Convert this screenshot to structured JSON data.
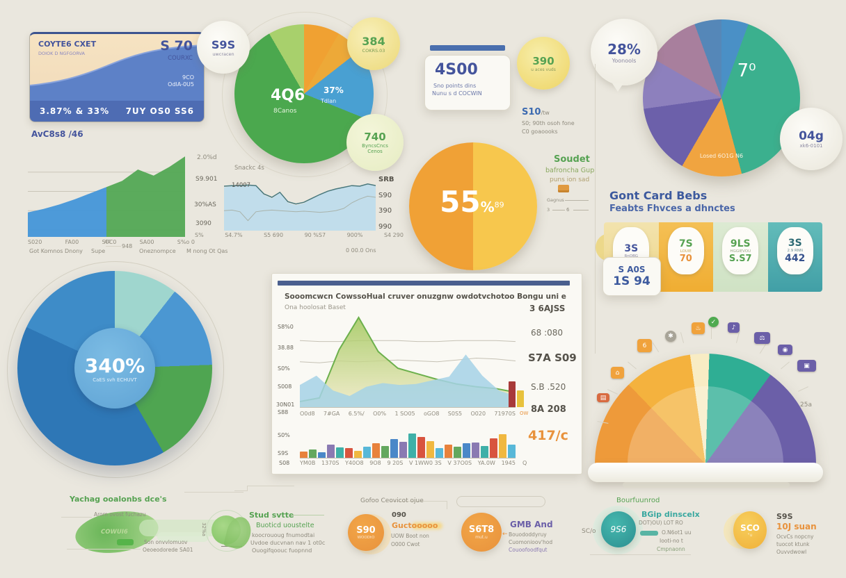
{
  "credit_card": {
    "name_line1": "COYTE6 CXET",
    "name_line2": "DOIOK D NGFGORVA",
    "amount": "S 70",
    "amount_sub": "COURXC",
    "wave_label1": "9CO",
    "wave_label2": "OdlA-0U5",
    "bottom_left": "3.87% & 33%",
    "bottom_right": "7UY OS0 SS6"
  },
  "left_section": {
    "caption_title": "AvC8s8 /46",
    "footnote1": "Got Komnos Dnony",
    "footnote_small": "40",
    "footnote2": "Supe",
    "footnote3": "948",
    "footnote4": "Oneznompce",
    "footnote5": "M nong Ot Qas"
  },
  "top_middle_pie": {
    "center_value": "4Q6",
    "center_sub": "8Canos",
    "slice_value": "37%",
    "slice_sub": "Tdlan"
  },
  "bubbles": {
    "b1": {
      "value": "S9S",
      "sub": "uwcracen"
    },
    "b2": {
      "value": "384",
      "sub": "COKRS.03"
    },
    "b3": {
      "value": "740",
      "sub1": "ByncsCncs",
      "sub2": "Cenos"
    },
    "b4": {
      "value": "390",
      "sub": "u aces vuds"
    },
    "b5": {
      "value": "28%",
      "sub": "Yoonools"
    },
    "b6": {
      "value": "04g",
      "sub": "xk6-0101"
    }
  },
  "card_500": {
    "value": "4S00",
    "line1": "Sno points dins",
    "line2": "Nunu s d COCWIN"
  },
  "note_10": {
    "value": "S10",
    "unit": "/tw",
    "line1": "S0; 90th osoh fone",
    "line2": "C0 goaoooks"
  },
  "top_right_pie": {
    "label": "7⁰",
    "slice_label": "Losed 6O1G N6"
  },
  "right_heading": {
    "line1": "Gont Card Bebs",
    "line2": "Feabts Fhvces a dhnctes"
  },
  "tiles": [
    {
      "value": "3S",
      "sub": "RnOBG",
      "extra": ""
    },
    {
      "value": "7S",
      "sub": "LOUIE",
      "extra": "70"
    },
    {
      "value": "9LS",
      "sub": "HGGIEVOU",
      "extra": "S.S7"
    },
    {
      "value": "3S",
      "sub": "2.9 RNN",
      "extra": "442"
    }
  ],
  "stat_card": {
    "line1": "S A0S",
    "line2": "1S 94"
  },
  "mid_blue_chart": {
    "left_labels": [
      "2.0%d",
      "S9.901",
      "30%AS",
      "3090"
    ],
    "note": "Snackc 4s",
    "inner_label": "14007",
    "right_labels": [
      "SRB",
      "S90",
      "390",
      "990"
    ],
    "x_labels": [
      "S%",
      "S4.7%",
      "S5 690",
      "90 %S7",
      "900%",
      "S4 290"
    ],
    "footnote": "0 00.0 Ons"
  },
  "orange_pie": {
    "value": "55",
    "pct": "%",
    "sup": "89"
  },
  "soudet": {
    "title": "Soudet",
    "line1": "bafroncha Gup",
    "line2": "puns ion sad",
    "legend1": "Gagnus",
    "legend2": "3",
    "legend3": "6"
  },
  "big_left_pie": {
    "center_value": "340%",
    "center_sub": "CaES svh ECHUVT"
  },
  "center_card": {
    "title": "Sooomcwcn CowssoHual cruver onuzgnw owdotvchotoo Bongu uni e",
    "subtitle": "Ona hoolosat Baset",
    "y_labels": [
      "S8%0",
      "38.88",
      "S0%",
      "S008",
      "30N01",
      "S88"
    ],
    "bar_y_labels": [
      "S0%",
      "S9S"
    ],
    "corner_label": "S08",
    "area_x_extra": "OW",
    "bar_x_extra": "Q",
    "right_stats": [
      "3 6AJSS",
      "68 :080",
      "S7A S09",
      "S.B .520",
      "8A 208",
      "417/c"
    ]
  },
  "gauge": {
    "icons_left": [
      "▤",
      "⌂",
      "6",
      "✱",
      "♨"
    ],
    "icon_top": "✓",
    "icons_right": [
      "♪",
      "⚖",
      "◉",
      "▣"
    ],
    "note": "25a"
  },
  "bottom": {
    "g1": {
      "title": "Yachag ooalonbs dce's",
      "line1": "Arom ovost fuchazu",
      "label": "COWUI6",
      "line2": "Son onvvlomuov",
      "line3": "Oeoeodorede SA01",
      "side": "32%a"
    },
    "g2": {
      "title": "Stud svtte",
      "subtitle": "Buoticd uoustelte",
      "line1": "koocrououg fnumodtai",
      "line2": "Uvdoe ducvnan nav 1 ot0c",
      "line3": "Ouogifqoouc fuopnnd"
    },
    "g3": {
      "title": "Gofoo Ceovicot ojue",
      "value": "S90",
      "value_sub": "WOODtO",
      "num": "090",
      "accent": "Guctooooo",
      "line1": "UOW Boot non",
      "line2": "O000 Cwot"
    },
    "g4": {
      "value": "S6T8",
      "value_sub": "mut.u",
      "title": "GMB And",
      "line1": "Bouododdyruy",
      "line2": "Cuomonioov'hod",
      "line3": "Couoofoodfqut"
    },
    "g5": {
      "title": "Bourfuunrod",
      "value": "9S6",
      "left": "SC/o",
      "accent": "BGip dinscelx",
      "line1": "DOT)OU) LOT RO",
      "line2": "O.N6ot1 uu",
      "line3": "Iooti-no t",
      "line4": "Cmpnaonn"
    },
    "g6": {
      "value": "SCO",
      "value_sub": "\"u",
      "num": "S9S",
      "accent": "10J suan",
      "line1": "OcvCs nopcny",
      "line2": "tuocot ktunk",
      "line3": "Ouvvdwowl"
    }
  },
  "chart_data": [
    {
      "id": "left_area",
      "type": "area",
      "categories": [
        "S020",
        "FA00",
        "S0C0",
        "SA00",
        "S%o 0"
      ],
      "grid": [
        8,
        30,
        52,
        74
      ],
      "series": [
        {
          "type": "area",
          "color": "#4596d8",
          "opacity": 0.95,
          "x0": 0,
          "x1": 0.5,
          "values": [
            28,
            32,
            37,
            43,
            50,
            57
          ]
        },
        {
          "type": "area",
          "color": "#53a854",
          "opacity": 0.95,
          "x0": 0.5,
          "x1": 1,
          "values": [
            57,
            64,
            77,
            70,
            80,
            92
          ]
        }
      ]
    },
    {
      "id": "top_middle_pie",
      "type": "pie",
      "start": 0,
      "slices": [
        {
          "color": "#f0a132",
          "deg": 30
        },
        {
          "color": "#eda938",
          "deg": 22
        },
        {
          "color": "#49a0d2",
          "deg": 60
        },
        {
          "color": "#4ba84e",
          "deg": 218
        },
        {
          "color": "#a8d06c",
          "deg": 30
        }
      ]
    },
    {
      "id": "top_right_pie",
      "type": "pie",
      "start": 0,
      "slices": [
        {
          "color": "#4a90c6",
          "deg": 20
        },
        {
          "color": "#3bb08e",
          "deg": 145
        },
        {
          "color": "#f0a440",
          "deg": 45
        },
        {
          "color": "#6c60aa",
          "deg": 52
        },
        {
          "color": "#8d80bd",
          "deg": 38
        },
        {
          "color": "#a87f9d",
          "deg": 40
        },
        {
          "color": "#5587b8",
          "deg": 20
        }
      ]
    },
    {
      "id": "mid_blue_area",
      "type": "area",
      "series": [
        {
          "type": "area",
          "color": "#bcdcec",
          "opacity": 0.9,
          "values": [
            78,
            80,
            80,
            81,
            80,
            64,
            58,
            68,
            50,
            46,
            49,
            57,
            64,
            70,
            74,
            77,
            80,
            79,
            83,
            80
          ]
        },
        {
          "type": "line",
          "color": "#47777c",
          "width": 1.5,
          "values": [
            80,
            81,
            81,
            82,
            81,
            66,
            60,
            69,
            52,
            48,
            51,
            58,
            65,
            71,
            75,
            78,
            81,
            80,
            84,
            81
          ]
        },
        {
          "type": "line",
          "color": "#a8b2aa",
          "width": 1,
          "values": [
            36,
            37,
            34,
            18,
            34,
            36,
            37,
            36,
            35,
            34,
            35,
            34,
            33,
            34,
            36,
            40,
            50,
            57,
            62,
            60
          ]
        }
      ]
    },
    {
      "id": "orange_pie_55",
      "type": "pie",
      "start": 0,
      "slices": [
        {
          "color": "#f7c74d",
          "deg": 180
        },
        {
          "color": "#f0a136",
          "deg": 180
        }
      ]
    },
    {
      "id": "center_combo_area",
      "type": "area",
      "x_labels": [
        "O0d8",
        "7#GA",
        "6.5%/",
        "O0%",
        "1 SO05",
        "oGO8",
        "S0S5",
        "O020",
        "71970S"
      ],
      "series": [
        {
          "type": "line",
          "color": "#c5c1b4",
          "width": 1,
          "values": [
            72,
            71,
            71,
            72,
            72,
            72,
            71,
            71,
            72,
            72,
            72,
            71
          ]
        },
        {
          "type": "line",
          "color": "#c5c1b4",
          "width": 1,
          "values": [
            49,
            48,
            50,
            49,
            50,
            51,
            50,
            49,
            51,
            53,
            52,
            50
          ]
        },
        {
          "type": "area",
          "color": "#b6d45e",
          "opacity": 0.8,
          "stroke": "#6cb04c",
          "strokew": 2,
          "gradient": [
            "#9cc452",
            "#efe9c2"
          ],
          "values": [
            6,
            10,
            62,
            97,
            60,
            42,
            36,
            30,
            25,
            22,
            20,
            16
          ]
        },
        {
          "type": "area",
          "color": "#a5d2e6",
          "opacity": 0.85,
          "values": [
            24,
            34,
            18,
            12,
            22,
            26,
            24,
            25,
            29,
            33,
            57,
            34,
            18,
            12
          ]
        }
      ],
      "edge_bars": {
        "values": [
          62,
          40
        ],
        "colors": [
          "#a83a3a",
          "#e8c23c"
        ]
      }
    },
    {
      "id": "center_bars",
      "type": "bar",
      "x_labels": [
        "YM0B",
        "1370S",
        "Y40O8",
        "9O8",
        "9 20S",
        "V 1WW0 3S",
        "V 37O0S",
        "YA.0W",
        "1945"
      ],
      "values": [
        16,
        20,
        14,
        32,
        26,
        24,
        18,
        28,
        36,
        30,
        46,
        40,
        60,
        52,
        42,
        24,
        32,
        28,
        36,
        38,
        30,
        48,
        58,
        32
      ],
      "colors": [
        "#e8823c",
        "#64a85e",
        "#4a88c8",
        "#8a7ab2",
        "#3fb0a8",
        "#d8543e",
        "#f0b840",
        "#58b8d8"
      ]
    },
    {
      "id": "big_left_pie",
      "type": "pie",
      "start": 0,
      "slices": [
        {
          "color": "#9fd6ce",
          "deg": 38
        },
        {
          "color": "#4b97d2",
          "deg": 50
        },
        {
          "color": "#4fa551",
          "deg": 62
        },
        {
          "color": "#2e77b6",
          "deg": 145
        },
        {
          "color": "#3e8cc8",
          "deg": 65
        }
      ]
    },
    {
      "id": "gauge",
      "type": "pie",
      "start": -90,
      "at": "50% 100%",
      "semicircle": true,
      "slices": [
        {
          "color": "#ee9a3a",
          "deg": 46
        },
        {
          "color": "#f4b23e",
          "deg": 36
        },
        {
          "color": "#f8ecc4",
          "deg": 10
        },
        {
          "color": "#2fae94",
          "deg": 34
        },
        {
          "color": "#6b5fa8",
          "deg": 54
        }
      ]
    }
  ]
}
